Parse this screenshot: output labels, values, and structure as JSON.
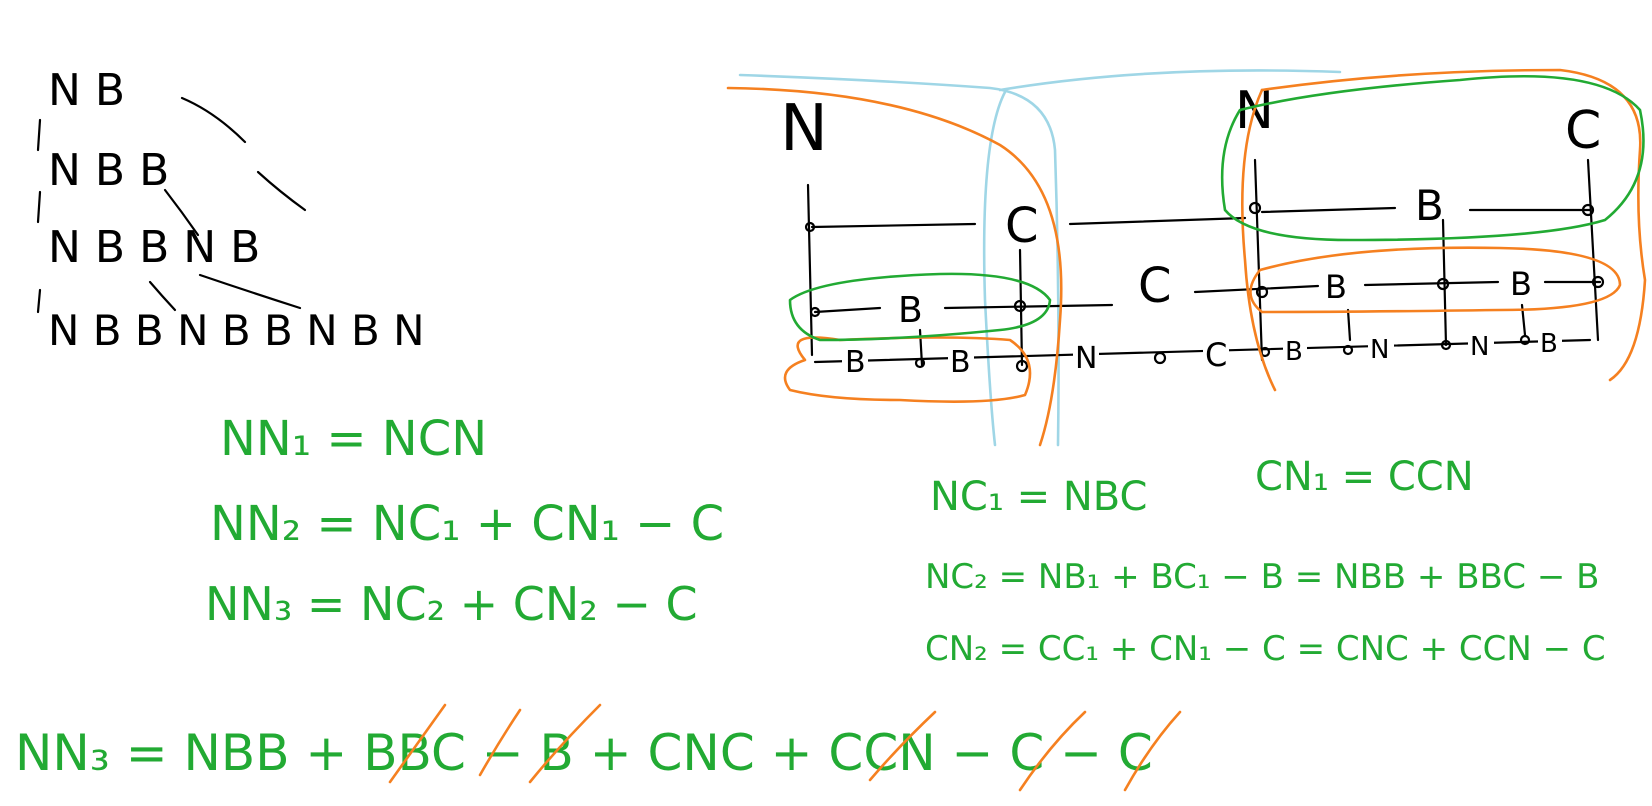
{
  "tree": {
    "rows": [
      "N B",
      "N B B",
      "N B B N B",
      "N B B N B B N B N"
    ]
  },
  "diagram": {
    "top_labels": [
      "N",
      "N",
      "C"
    ],
    "mid_labels": [
      "C",
      "B",
      "C"
    ],
    "row1_labels": [
      "B",
      "C",
      "B",
      "B"
    ],
    "row2_labels": [
      "B",
      "B",
      "N",
      "C",
      "B",
      "N",
      "N",
      "B"
    ]
  },
  "equations": {
    "nn1": "NN₁ = NCN",
    "nn2": "NN₂ = NC₁ + CN₁ − C",
    "nn3": "NN₃ = NC₂ + CN₂ − C",
    "nc1": "NC₁ = NBC",
    "cn1": "CN₁ = CCN",
    "nc2": "NC₂ = NB₁ + BC₁ − B = NBB + BBC − B",
    "cn2": "CN₂ = CC₁ + CN₁ − C = CNC + CCN − C",
    "final": "NN₃ = NBB + BBC − B + CNC + CCN − C − C"
  },
  "colors": {
    "ink": "#000000",
    "green": "#22aa33",
    "orange": "#f58020",
    "blue": "#9fd6e6"
  }
}
